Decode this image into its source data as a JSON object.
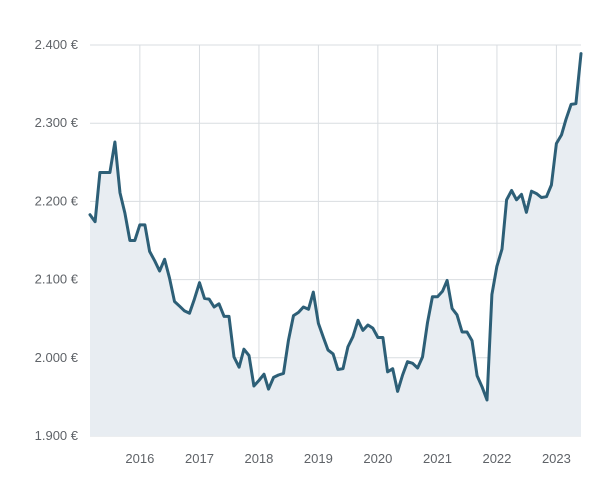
{
  "chart_data": {
    "type": "area",
    "title": "",
    "xlabel": "",
    "ylabel": "",
    "grid": true,
    "ylim": [
      1900,
      2400
    ],
    "xlim": [
      "2015-03-01",
      "2023-06-01"
    ],
    "y_ticks": [
      {
        "value": 1900,
        "label": "1.900 €"
      },
      {
        "value": 2000,
        "label": "2.000 €"
      },
      {
        "value": 2100,
        "label": "2.100 €"
      },
      {
        "value": 2200,
        "label": "2.200 €"
      },
      {
        "value": 2300,
        "label": "2.300 €"
      },
      {
        "value": 2400,
        "label": "2.400 €"
      }
    ],
    "x_ticks": [
      {
        "value": "2016-01-01",
        "label": "2016"
      },
      {
        "value": "2017-01-01",
        "label": "2017"
      },
      {
        "value": "2018-01-01",
        "label": "2018"
      },
      {
        "value": "2019-01-01",
        "label": "2019"
      },
      {
        "value": "2020-01-01",
        "label": "2020"
      },
      {
        "value": "2021-01-01",
        "label": "2021"
      },
      {
        "value": "2022-01-01",
        "label": "2022"
      },
      {
        "value": "2023-01-01",
        "label": "2023"
      }
    ],
    "colors": {
      "line": "#2d5f77",
      "area": "#e8edf2",
      "grid": "#d9dde1"
    },
    "series": [
      {
        "x": [
          "2015-03",
          "2015-04",
          "2015-05",
          "2015-06",
          "2015-07",
          "2015-08",
          "2015-09",
          "2015-10",
          "2015-11",
          "2015-12",
          "2016-01",
          "2016-02",
          "2016-03",
          "2016-04",
          "2016-05",
          "2016-06",
          "2016-07",
          "2016-08",
          "2016-09",
          "2016-10",
          "2016-11",
          "2016-12",
          "2017-01",
          "2017-02",
          "2017-03",
          "2017-04",
          "2017-05",
          "2017-06",
          "2017-07",
          "2017-08",
          "2017-09",
          "2017-10",
          "2017-11",
          "2017-12",
          "2018-01",
          "2018-02",
          "2018-03",
          "2018-04",
          "2018-05",
          "2018-06",
          "2018-07",
          "2018-08",
          "2018-09",
          "2018-10",
          "2018-11",
          "2018-12",
          "2019-01",
          "2019-02",
          "2019-03",
          "2019-04",
          "2019-05",
          "2019-06",
          "2019-07",
          "2019-08",
          "2019-09",
          "2019-10",
          "2019-11",
          "2019-12",
          "2020-01",
          "2020-02",
          "2020-03",
          "2020-04",
          "2020-05",
          "2020-06",
          "2020-07",
          "2020-08",
          "2020-09",
          "2020-10",
          "2020-11",
          "2020-12",
          "2021-01",
          "2021-02",
          "2021-03",
          "2021-04",
          "2021-05",
          "2021-06",
          "2021-07",
          "2021-08",
          "2021-09",
          "2021-10",
          "2021-11",
          "2021-12",
          "2022-01",
          "2022-02",
          "2022-03",
          "2022-04",
          "2022-05",
          "2022-06",
          "2022-07",
          "2022-08",
          "2022-09",
          "2022-10",
          "2022-11",
          "2022-12",
          "2023-01",
          "2023-02",
          "2023-03",
          "2023-04",
          "2023-05",
          "2023-06"
        ],
        "y": [
          2183,
          2174,
          2237,
          2237,
          2237,
          2276,
          2211,
          2185,
          2150,
          2150,
          2170,
          2170,
          2136,
          2124,
          2111,
          2126,
          2102,
          2072,
          2066,
          2060,
          2057,
          2075,
          2096,
          2076,
          2075,
          2065,
          2069,
          2053,
          2053,
          2001,
          1988,
          2011,
          2003,
          1964,
          1971,
          1979,
          1960,
          1975,
          1978,
          1980,
          2022,
          2054,
          2058,
          2065,
          2062,
          2084,
          2044,
          2026,
          2010,
          2005,
          1985,
          1986,
          2014,
          2027,
          2048,
          2035,
          2042,
          2038,
          2026,
          2026,
          1982,
          1986,
          1957,
          1978,
          1995,
          1993,
          1987,
          2001,
          2045,
          2078,
          2078,
          2085,
          2099,
          2063,
          2055,
          2033,
          2033,
          2022,
          1977,
          1963,
          1946,
          2081,
          2117,
          2139,
          2202,
          2214,
          2202,
          2209,
          2186,
          2213,
          2210,
          2205,
          2206,
          2221,
          2274,
          2285,
          2305,
          2324,
          2325,
          2389
        ]
      }
    ]
  }
}
